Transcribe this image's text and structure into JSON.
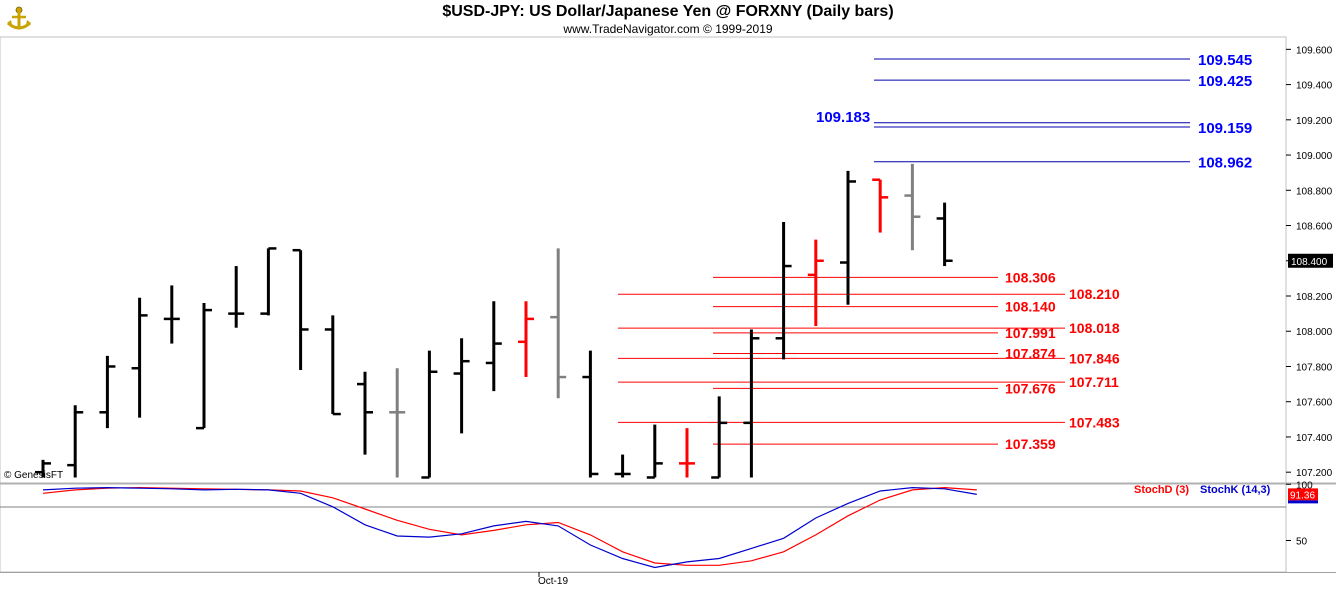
{
  "header": {
    "title": "$USD-JPY:  US Dollar/Japanese Yen @ FORXNY  (Daily bars)",
    "subtitle": "www.TradeNavigator.com © 1999-2019",
    "logo_icon": "trade-navigator-compass-logo"
  },
  "colors": {
    "up_bar": "#000000",
    "down_bar": "#ff0000",
    "neutral_bar": "#808080",
    "resistance_line": "#0000aa",
    "resistance_label": "#0000ff",
    "support_line": "#ff0000",
    "support_label": "#ff0000",
    "stoch_d": "#ff0000",
    "stoch_k": "#0000cc",
    "price_box": "#000000"
  },
  "chart_data": [
    {
      "type": "ohlc",
      "title": "$USD-JPY:  US Dollar/Japanese Yen @ FORXNY  (Daily bars)",
      "x_label": "Oct-19",
      "copyright": "© GenesisFT",
      "ylim": [
        107.15,
        109.67
      ],
      "y_ticks": [
        "107.200",
        "107.400",
        "107.600",
        "107.800",
        "108.000",
        "108.200",
        "108.400",
        "108.600",
        "108.800",
        "109.000",
        "109.200",
        "109.400",
        "109.600"
      ],
      "last_price_label": "108.400",
      "last_price": 108.4,
      "bars": [
        {
          "o": 107.2,
          "h": 107.27,
          "l": 107.17,
          "c": 107.25,
          "color": "up"
        },
        {
          "o": 107.24,
          "h": 107.58,
          "l": 107.17,
          "c": 107.54,
          "color": "up"
        },
        {
          "o": 107.54,
          "h": 107.86,
          "l": 107.45,
          "c": 107.8,
          "color": "up"
        },
        {
          "o": 107.79,
          "h": 108.19,
          "l": 107.51,
          "c": 108.09,
          "color": "up"
        },
        {
          "o": 108.07,
          "h": 108.26,
          "l": 107.93,
          "c": 108.07,
          "color": "up"
        },
        {
          "o": 107.45,
          "h": 108.16,
          "l": 107.45,
          "c": 108.12,
          "color": "up"
        },
        {
          "o": 108.1,
          "h": 108.37,
          "l": 108.02,
          "c": 108.1,
          "color": "up"
        },
        {
          "o": 108.1,
          "h": 108.47,
          "l": 108.09,
          "c": 108.47,
          "color": "up"
        },
        {
          "o": 108.46,
          "h": 108.46,
          "l": 107.78,
          "c": 108.01,
          "color": "up"
        },
        {
          "o": 108.01,
          "h": 108.09,
          "l": 107.53,
          "c": 107.53,
          "color": "up"
        },
        {
          "o": 107.7,
          "h": 107.77,
          "l": 107.3,
          "c": 107.54,
          "color": "up"
        },
        {
          "o": 107.54,
          "h": 107.79,
          "l": 107.17,
          "c": 107.54,
          "color": "neutral"
        },
        {
          "o": 107.17,
          "h": 107.89,
          "l": 107.17,
          "c": 107.77,
          "color": "up"
        },
        {
          "o": 107.76,
          "h": 107.96,
          "l": 107.42,
          "c": 107.83,
          "color": "up"
        },
        {
          "o": 107.82,
          "h": 108.17,
          "l": 107.66,
          "c": 107.93,
          "color": "up"
        },
        {
          "o": 107.94,
          "h": 108.17,
          "l": 107.74,
          "c": 108.07,
          "color": "down"
        },
        {
          "o": 108.08,
          "h": 108.47,
          "l": 107.62,
          "c": 107.74,
          "color": "neutral"
        },
        {
          "o": 107.74,
          "h": 107.89,
          "l": 107.17,
          "c": 107.19,
          "color": "up"
        },
        {
          "o": 107.19,
          "h": 107.3,
          "l": 107.17,
          "c": 107.19,
          "color": "up"
        },
        {
          "o": 107.17,
          "h": 107.47,
          "l": 107.17,
          "c": 107.25,
          "color": "up"
        },
        {
          "o": 107.25,
          "h": 107.45,
          "l": 107.17,
          "c": 107.25,
          "color": "down"
        },
        {
          "o": 107.17,
          "h": 107.63,
          "l": 107.17,
          "c": 107.48,
          "color": "up"
        },
        {
          "o": 107.48,
          "h": 108.01,
          "l": 107.17,
          "c": 107.96,
          "color": "up"
        },
        {
          "o": 107.96,
          "h": 108.62,
          "l": 107.84,
          "c": 108.37,
          "color": "up"
        },
        {
          "o": 108.32,
          "h": 108.52,
          "l": 108.03,
          "c": 108.4,
          "color": "down"
        },
        {
          "o": 108.39,
          "h": 108.91,
          "l": 108.15,
          "c": 108.85,
          "color": "up"
        },
        {
          "o": 108.86,
          "h": 108.86,
          "l": 108.56,
          "c": 108.76,
          "color": "down"
        },
        {
          "o": 108.77,
          "h": 108.95,
          "l": 108.46,
          "c": 108.65,
          "color": "neutral"
        },
        {
          "o": 108.64,
          "h": 108.73,
          "l": 108.37,
          "c": 108.4,
          "color": "up"
        }
      ],
      "resistance_levels": [
        {
          "value": 109.545,
          "label": "109.545",
          "label_side": "right"
        },
        {
          "value": 109.425,
          "label": "109.425",
          "label_side": "right"
        },
        {
          "value": 109.183,
          "label": "109.183",
          "label_side": "left"
        },
        {
          "value": 109.159,
          "label": "109.159",
          "label_side": "right"
        },
        {
          "value": 108.962,
          "label": "108.962",
          "label_side": "right"
        }
      ],
      "support_levels": [
        {
          "value": 108.306,
          "label": "108.306",
          "group": "short"
        },
        {
          "value": 108.21,
          "label": "108.210",
          "group": "long"
        },
        {
          "value": 108.14,
          "label": "108.140",
          "group": "short"
        },
        {
          "value": 108.018,
          "label": "108.018",
          "group": "long"
        },
        {
          "value": 107.991,
          "label": "107.991",
          "group": "short"
        },
        {
          "value": 107.874,
          "label": "107.874",
          "group": "short"
        },
        {
          "value": 107.846,
          "label": "107.846",
          "group": "long"
        },
        {
          "value": 107.711,
          "label": "107.711",
          "group": "long"
        },
        {
          "value": 107.676,
          "label": "107.676",
          "group": "short"
        },
        {
          "value": 107.483,
          "label": "107.483",
          "group": "long"
        },
        {
          "value": 107.359,
          "label": "107.359",
          "group": "short"
        }
      ]
    },
    {
      "type": "line",
      "ylim": [
        22,
        102
      ],
      "y_ticks": [
        "100",
        "50"
      ],
      "last_value_label": "91.36",
      "legend": [
        "StochD (3)",
        "StochK (14,3)"
      ],
      "series": [
        {
          "name": "StochD (3)",
          "values": [
            92,
            95,
            96.5,
            97,
            96.5,
            96,
            95.5,
            95,
            94,
            88,
            78,
            68,
            60,
            55,
            59,
            64,
            66,
            55,
            40,
            30,
            28,
            28,
            32,
            40,
            55,
            72,
            86,
            95,
            97,
            95
          ]
        },
        {
          "name": "StochK (14,3)",
          "values": [
            95,
            96.5,
            97,
            96.5,
            96,
            95,
            95.5,
            95,
            92,
            80,
            64,
            54,
            53,
            56,
            63,
            67,
            63,
            46,
            34,
            26,
            31,
            34,
            43,
            52,
            70,
            83,
            94,
            97,
            96,
            91
          ]
        }
      ]
    }
  ]
}
